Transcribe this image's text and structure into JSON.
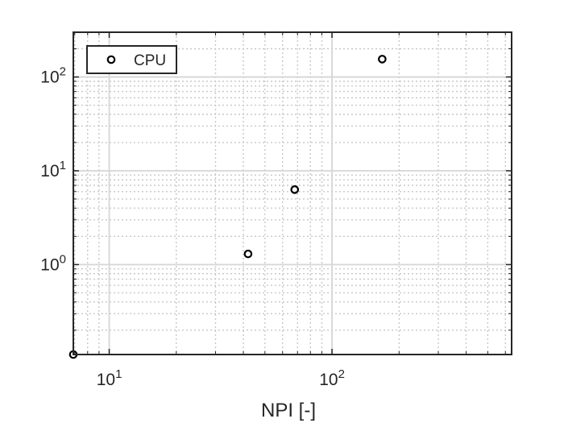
{
  "chart_data": {
    "type": "scatter",
    "x_scale": "log",
    "y_scale": "log",
    "xlim": [
      6.9,
      640
    ],
    "ylim": [
      0.11,
      300
    ],
    "xlabel": "NPI [-]",
    "ylabel": "",
    "x_ticks": [
      {
        "value": 10,
        "base": "10",
        "exp": "1"
      },
      {
        "value": 100,
        "base": "10",
        "exp": "2"
      }
    ],
    "y_ticks": [
      {
        "value": 1,
        "base": "10",
        "exp": "0"
      },
      {
        "value": 10,
        "base": "10",
        "exp": "1"
      },
      {
        "value": 100,
        "base": "10",
        "exp": "2"
      }
    ],
    "grid": true,
    "minor_grid": true,
    "legend_position": "top-left",
    "series": [
      {
        "name": "CPU",
        "marker": "circle-open",
        "color": "#000000",
        "points": [
          {
            "x": 6.9,
            "y": 0.11
          },
          {
            "x": 42,
            "y": 1.3
          },
          {
            "x": 68,
            "y": 6.3
          },
          {
            "x": 168,
            "y": 155
          }
        ]
      }
    ]
  }
}
